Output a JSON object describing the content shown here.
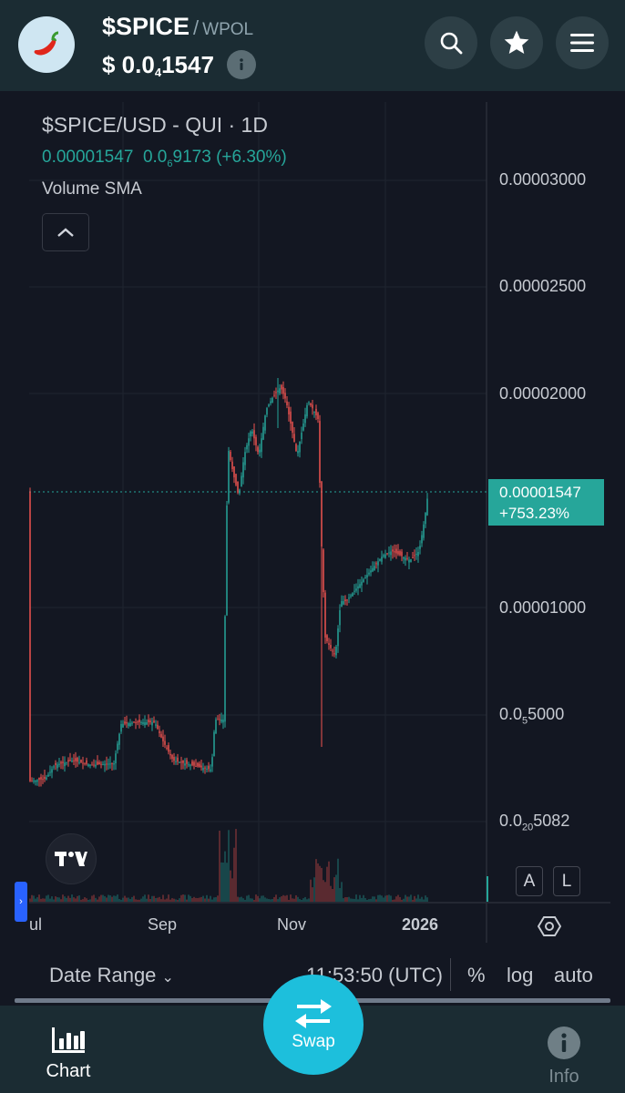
{
  "header": {
    "token_symbol": "$SPICE",
    "separator": "/",
    "pair_token": "WPOL",
    "price_prefix": "$ 0.0",
    "price_zeros_sub": "4",
    "price_rest": "1547",
    "icons": [
      "chili-pepper-icon",
      "info-icon",
      "search-icon",
      "star-icon",
      "menu-icon"
    ]
  },
  "chart": {
    "legend_title": "$SPICE/USD - QUI · 1D",
    "legend_price": "0.00001547",
    "legend_change_prefix": "0.0",
    "legend_change_sub": "6",
    "legend_change_rest": "9173",
    "legend_change_pct": "(+6.30%)",
    "indicator": "Volume SMA",
    "y_axis_labels": [
      {
        "text": "0.00003000"
      },
      {
        "text": "0.00002500"
      },
      {
        "text": "0.00002000"
      },
      {
        "text": "0.00001000"
      },
      {
        "prefix": "0.0",
        "sub": "5",
        "rest": "5000"
      },
      {
        "prefix": "0.0",
        "sub": "20",
        "rest": "5082"
      }
    ],
    "last_price": "0.00001547",
    "last_change": "+753.23%",
    "x_labels": [
      "ul",
      "Sep",
      "Nov",
      "2026"
    ],
    "auto_btn": "A",
    "log_btn": "L",
    "colors": {
      "up": "#26a69a",
      "down": "#ef5350",
      "bg": "#131722"
    }
  },
  "chart_data": {
    "type": "candlestick",
    "title": "$SPICE/USD - QUI · 1D",
    "x_ticks": [
      "ul",
      "Sep",
      "Nov",
      "2026"
    ],
    "y_ticks": [
      "0.00003000",
      "0.00002500",
      "0.00002000",
      "0.00001000"
    ],
    "log_scale": true,
    "last_price": 1.547e-05,
    "last_change_pct": 753.23,
    "series": [
      {
        "period": "Jul",
        "approx_close": 3.1e-06
      },
      {
        "period": "Aug",
        "approx_close": 4.5e-06
      },
      {
        "period": "early Sep",
        "approx_close": 3.2e-06
      },
      {
        "period": "mid Sep spike",
        "approx_high": 2.7e-05,
        "approx_close": 1.5e-05
      },
      {
        "period": "Oct",
        "approx_close": 1.95e-05
      },
      {
        "period": "Nov dip",
        "approx_low": 4.5e-06,
        "approx_close": 9e-06
      },
      {
        "period": "Dec",
        "approx_close": 1.2e-05
      },
      {
        "period": "2026",
        "approx_close": 1.547e-05
      }
    ]
  },
  "toolbar": {
    "date_range": "Date Range",
    "time": "11:53:50 (UTC)",
    "percent": "%",
    "log": "log",
    "auto": "auto"
  },
  "nav": {
    "chart": "Chart",
    "swap": "Swap",
    "info": "Info"
  }
}
